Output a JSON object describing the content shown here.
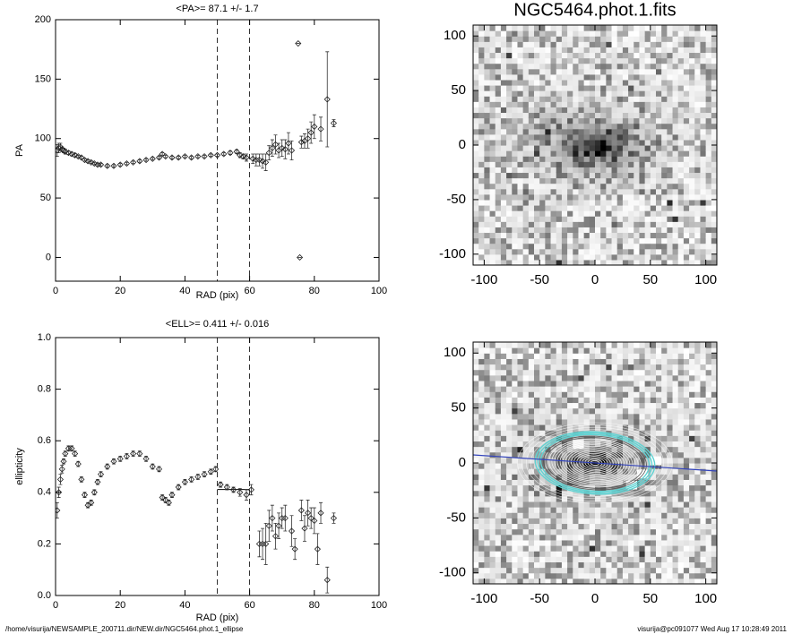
{
  "chart_data": [
    {
      "type": "errorscatter",
      "title": "<PA>=  87.1 +/-   1.7",
      "xlabel": "RAD (pix)",
      "ylabel": "PA",
      "xlim": [
        0,
        100
      ],
      "xticks": [
        0,
        20,
        40,
        60,
        80,
        100
      ],
      "ylim": [
        -20,
        200
      ],
      "yticks": [
        0,
        50,
        100,
        150,
        200
      ],
      "vlines": [
        50,
        60
      ],
      "x": [
        0.5,
        1,
        1.5,
        2,
        2.5,
        3,
        4,
        5,
        6,
        7,
        8,
        9,
        10,
        11,
        12,
        13,
        14,
        16,
        18,
        20,
        22,
        24,
        26,
        28,
        30,
        32,
        33,
        34,
        36,
        38,
        40,
        42,
        44,
        46,
        48,
        50,
        52,
        54,
        56,
        57,
        58,
        59,
        61,
        62,
        63,
        64,
        65,
        66,
        67,
        68,
        69,
        70,
        71,
        72,
        73,
        75,
        75.5,
        76,
        77,
        78,
        79,
        80,
        82,
        84,
        86
      ],
      "values": [
        90,
        92,
        93,
        91,
        90,
        89,
        88,
        87,
        86,
        85,
        84,
        82,
        81,
        80,
        79,
        78,
        78,
        77,
        77,
        78,
        79,
        80,
        81,
        82,
        83,
        84,
        87,
        85,
        84,
        84,
        85,
        84,
        85,
        85,
        86,
        86,
        87,
        88,
        89,
        86,
        85,
        84,
        83,
        82,
        82,
        81,
        80,
        88,
        92,
        95,
        90,
        92,
        91,
        96,
        90,
        180,
        0,
        97,
        98,
        100,
        105,
        110,
        108,
        133,
        113
      ],
      "errors": [
        5,
        4,
        3,
        2,
        2,
        2,
        1.5,
        1.5,
        1.5,
        1,
        1,
        1,
        1,
        1,
        1,
        1,
        1,
        1,
        1,
        1,
        1,
        1,
        1,
        1,
        1,
        1,
        1,
        1,
        1,
        1,
        1,
        1,
        1,
        1,
        1,
        1,
        1,
        1.5,
        1.5,
        2,
        2,
        3,
        4,
        5,
        5,
        6,
        7,
        6,
        7,
        8,
        6,
        7,
        8,
        9,
        8,
        0,
        0,
        5,
        6,
        8,
        9,
        10,
        10,
        40,
        3
      ]
    },
    {
      "type": "errorscatter",
      "title": "<ELL>= 0.411 +/-  0.016",
      "xlabel": "RAD (pix)",
      "ylabel": "ellipticity",
      "xlim": [
        0,
        100
      ],
      "xticks": [
        0,
        20,
        40,
        60,
        80,
        100
      ],
      "ylim": [
        0,
        1
      ],
      "yticks": [
        {
          "value": 0,
          "label": "0.0"
        },
        0.2,
        0.4,
        0.6,
        0.8,
        {
          "value": 1,
          "label": "1.0"
        }
      ],
      "vlines": [
        50,
        60
      ],
      "mean_line": {
        "y": 0.411,
        "x": [
          50,
          60
        ]
      },
      "x": [
        0.5,
        1,
        1.5,
        2,
        2.5,
        3,
        4,
        5,
        6,
        7,
        8,
        9,
        10,
        11,
        12,
        13,
        14,
        16,
        18,
        20,
        22,
        24,
        26,
        28,
        30,
        32,
        33,
        34,
        35,
        36,
        38,
        40,
        42,
        44,
        46,
        48,
        49.5,
        51,
        53,
        55,
        57,
        59,
        60.5,
        63,
        64,
        65,
        66,
        67,
        68,
        69,
        70,
        71,
        73,
        74,
        76,
        77,
        78,
        79,
        80,
        81,
        82,
        84,
        86
      ],
      "values": [
        0.33,
        0.4,
        0.45,
        0.49,
        0.52,
        0.55,
        0.57,
        0.57,
        0.55,
        0.51,
        0.45,
        0.39,
        0.35,
        0.36,
        0.4,
        0.44,
        0.47,
        0.5,
        0.52,
        0.53,
        0.54,
        0.55,
        0.55,
        0.53,
        0.5,
        0.49,
        0.38,
        0.37,
        0.36,
        0.39,
        0.42,
        0.44,
        0.45,
        0.46,
        0.47,
        0.48,
        0.49,
        0.43,
        0.42,
        0.41,
        0.4,
        0.39,
        0.41,
        0.2,
        0.2,
        0.2,
        0.27,
        0.3,
        0.23,
        0.27,
        0.3,
        0.3,
        0.25,
        0.18,
        0.33,
        0.26,
        0.32,
        0.3,
        0.29,
        0.18,
        0.32,
        0.06,
        0.3
      ],
      "errors": [
        0.03,
        0.02,
        0.02,
        0.015,
        0.01,
        0.01,
        0.01,
        0.01,
        0.01,
        0.01,
        0.01,
        0.01,
        0.01,
        0.01,
        0.01,
        0.01,
        0.01,
        0.01,
        0.01,
        0.01,
        0.01,
        0.01,
        0.01,
        0.01,
        0.01,
        0.01,
        0.01,
        0.01,
        0.01,
        0.01,
        0.01,
        0.01,
        0.01,
        0.01,
        0.01,
        0.01,
        0.01,
        0.01,
        0.01,
        0.01,
        0.015,
        0.02,
        0.02,
        0.05,
        0.06,
        0.08,
        0.06,
        0.05,
        0.05,
        0.05,
        0.04,
        0.05,
        0.06,
        0.04,
        0.04,
        0.05,
        0.05,
        0.04,
        0.05,
        0.06,
        0.04,
        0.05,
        0.02
      ]
    },
    {
      "type": "image",
      "title": "NGC5464.phot.1.fits",
      "xlim": [
        -110,
        110
      ],
      "ylim": [
        -110,
        110
      ],
      "xticks": [
        -100,
        -50,
        0,
        50,
        100
      ],
      "yticks": [
        -100,
        -50,
        0,
        50,
        100
      ]
    },
    {
      "type": "image",
      "overlay": true,
      "xlim": [
        -110,
        110
      ],
      "ylim": [
        -110,
        110
      ],
      "xticks": [
        -100,
        -50,
        0,
        50,
        100
      ],
      "yticks": [
        -100,
        -50,
        0,
        50,
        100
      ]
    }
  ],
  "footer": {
    "path": "/home/visurija/NEWSAMPLE_200711.dir/NEW.dir/NGC5464.phot.1_ellipse",
    "stamp": "visurija@pc091077  Wed Aug 17 10:28:49 2011"
  }
}
